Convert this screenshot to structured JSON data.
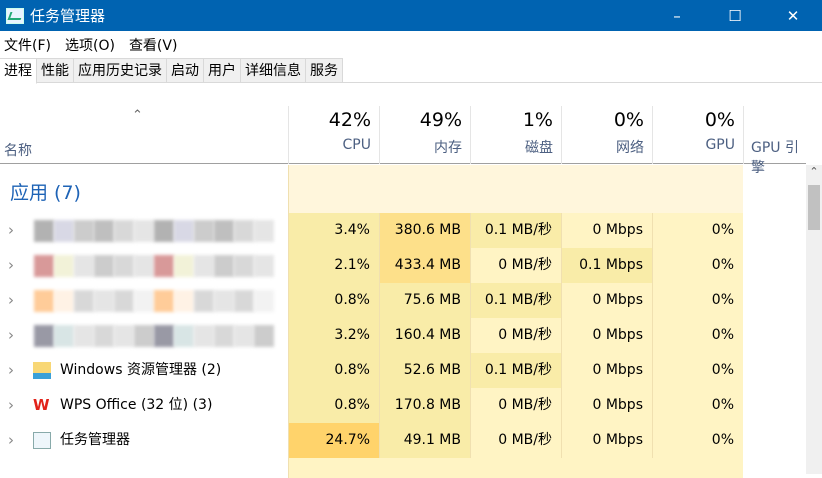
{
  "window": {
    "title": "任务管理器",
    "icon": "task-manager-icon"
  },
  "menu": [
    "文件(F)",
    "选项(O)",
    "查看(V)"
  ],
  "tabs": [
    {
      "label": "进程",
      "active": true
    },
    {
      "label": "性能"
    },
    {
      "label": "应用历史记录"
    },
    {
      "label": "启动"
    },
    {
      "label": "用户"
    },
    {
      "label": "详细信息"
    },
    {
      "label": "服务"
    }
  ],
  "columns": {
    "name": "名称",
    "cpu": {
      "label": "CPU",
      "total": "42%"
    },
    "memory": {
      "label": "内存",
      "total": "49%"
    },
    "disk": {
      "label": "磁盘",
      "total": "1%"
    },
    "network": {
      "label": "网络",
      "total": "0%"
    },
    "gpu": {
      "label": "GPU",
      "total": "0%"
    },
    "gpu_engine": {
      "label": "GPU 引擎"
    }
  },
  "group": {
    "label": "应用 (7)"
  },
  "heat_colors": [
    "#fff4c4",
    "#f9eca8",
    "#fde08a",
    "#ffd36b"
  ],
  "rows": [
    {
      "name": "",
      "blurred": true,
      "cpu": "3.4%",
      "memory": "380.6 MB",
      "disk": "0.1 MB/秒",
      "network": "0 Mbps",
      "gpu": "0%",
      "heat": [
        1,
        2,
        1,
        0,
        0
      ]
    },
    {
      "name": "",
      "blurred": true,
      "cpu": "2.1%",
      "memory": "433.4 MB",
      "disk": "0 MB/秒",
      "network": "0.1 Mbps",
      "gpu": "0%",
      "heat": [
        1,
        2,
        0,
        1,
        0
      ]
    },
    {
      "name": "",
      "blurred": true,
      "cpu": "0.8%",
      "memory": "75.6 MB",
      "disk": "0.1 MB/秒",
      "network": "0 Mbps",
      "gpu": "0%",
      "heat": [
        1,
        1,
        1,
        0,
        0
      ]
    },
    {
      "name": "",
      "blurred": true,
      "cpu": "3.2%",
      "memory": "160.4 MB",
      "disk": "0 MB/秒",
      "network": "0 Mbps",
      "gpu": "0%",
      "heat": [
        1,
        1,
        0,
        0,
        0
      ]
    },
    {
      "name": "Windows 资源管理器 (2)",
      "icon": "folder-icon",
      "cpu": "0.8%",
      "memory": "52.6 MB",
      "disk": "0.1 MB/秒",
      "network": "0 Mbps",
      "gpu": "0%",
      "heat": [
        1,
        1,
        1,
        0,
        0
      ]
    },
    {
      "name": "WPS Office (32 位) (3)",
      "icon": "wps-icon",
      "cpu": "0.8%",
      "memory": "170.8 MB",
      "disk": "0 MB/秒",
      "network": "0 Mbps",
      "gpu": "0%",
      "heat": [
        1,
        1,
        0,
        0,
        0
      ]
    },
    {
      "name": "任务管理器",
      "icon": "task-manager-icon",
      "cpu": "24.7%",
      "memory": "49.1 MB",
      "disk": "0 MB/秒",
      "network": "0 Mbps",
      "gpu": "0%",
      "heat": [
        3,
        1,
        0,
        0,
        0
      ]
    }
  ]
}
